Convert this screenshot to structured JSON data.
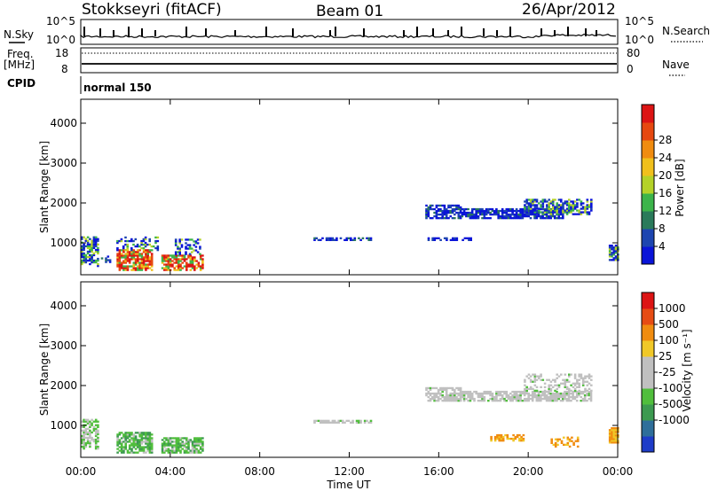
{
  "header": {
    "station": "Stokkseyri (fitACF)",
    "beam": "Beam 01",
    "date": "26/Apr/2012"
  },
  "top_panels": {
    "nsky_label": "N.Sky",
    "nsky_ticks": [
      "10^5",
      "10^0"
    ],
    "nsearch_label": "N.Search",
    "nsearch_ticks": [
      "10^5",
      "10^0"
    ],
    "freq_label_1": "Freq.",
    "freq_label_2": "[MHz]",
    "freq_ticks": [
      "18",
      "8"
    ],
    "nave_label": "Nave",
    "nave_ticks": [
      "80",
      "0"
    ],
    "cpid_label": "CPID",
    "cpid_mode": "normal 150"
  },
  "chart_data": [
    {
      "type": "heatmap",
      "name": "power",
      "ylabel": "Slant Range [km]",
      "y_ticks": [
        "1000",
        "2000",
        "3000",
        "4000"
      ],
      "ylim": [
        200,
        4600
      ],
      "colorbar_label": "Power [dB]",
      "colorbar_ticks": [
        "4",
        "8",
        "12",
        "16",
        "20",
        "24",
        "28"
      ],
      "colorbar_colors": [
        "#0a14d8",
        "#1d45b0",
        "#2a7a5a",
        "#3cb44a",
        "#b4d228",
        "#f0c01c",
        "#f08c10",
        "#e64810",
        "#dc1414"
      ]
    },
    {
      "type": "heatmap",
      "name": "velocity",
      "ylabel": "Slant Range [km]",
      "y_ticks": [
        "1000",
        "2000",
        "3000",
        "4000"
      ],
      "ylim": [
        200,
        4600
      ],
      "colorbar_label": "Velocity [m s⁻¹]",
      "colorbar_ticks": [
        "1000",
        "500",
        "100",
        "25",
        "-25",
        "-100",
        "-500",
        "-1000"
      ],
      "colorbar_colors": [
        "#1e3cc8",
        "#2e6e9a",
        "#3c9a50",
        "#50be3c",
        "#c0c0c0",
        "#c0c0c0",
        "#f0c828",
        "#f08c10",
        "#e64c14",
        "#dc1414"
      ]
    }
  ],
  "x_axis": {
    "label": "Time UT",
    "ticks": [
      "00:00",
      "04:00",
      "08:00",
      "12:00",
      "16:00",
      "20:00",
      "00:00"
    ]
  }
}
